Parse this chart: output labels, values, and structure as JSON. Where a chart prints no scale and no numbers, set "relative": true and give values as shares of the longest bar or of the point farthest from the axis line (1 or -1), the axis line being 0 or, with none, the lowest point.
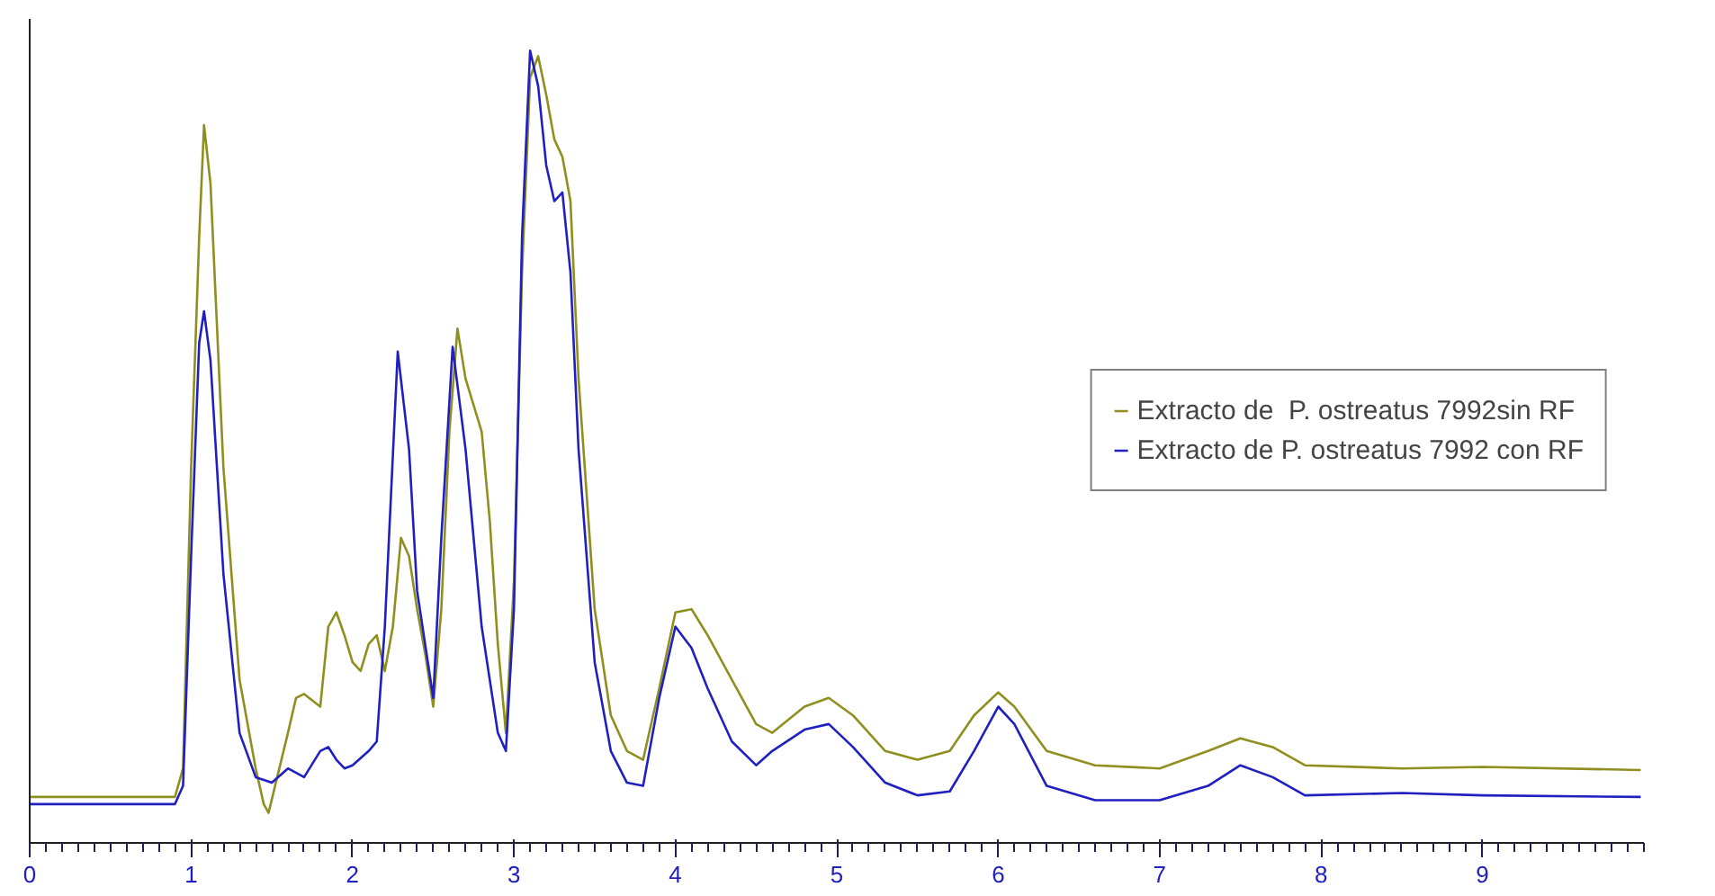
{
  "chart_data": {
    "type": "line",
    "relative": true,
    "xlim": [
      0,
      10
    ],
    "xticks": [
      0,
      1,
      2,
      3,
      4,
      5,
      6,
      7,
      8,
      9
    ],
    "grid": false,
    "legend": "right",
    "marker": "none",
    "line_style": "solid",
    "series": [
      {
        "name": "Extracto de  P. ostreatus 7992sin RF",
        "color": "#8f8f1f",
        "x": [
          0,
          0.9,
          0.95,
          1.0,
          1.05,
          1.08,
          1.12,
          1.2,
          1.3,
          1.4,
          1.45,
          1.48,
          1.52,
          1.6,
          1.65,
          1.7,
          1.8,
          1.85,
          1.9,
          1.95,
          2.0,
          2.05,
          2.1,
          2.15,
          2.2,
          2.25,
          2.3,
          2.35,
          2.4,
          2.45,
          2.5,
          2.55,
          2.6,
          2.65,
          2.7,
          2.8,
          2.85,
          2.9,
          2.95,
          3.0,
          3.05,
          3.1,
          3.15,
          3.2,
          3.25,
          3.3,
          3.35,
          3.4,
          3.5,
          3.6,
          3.7,
          3.8,
          3.9,
          4.0,
          4.1,
          4.2,
          4.35,
          4.5,
          4.6,
          4.8,
          4.95,
          5.1,
          5.3,
          5.5,
          5.7,
          5.85,
          6.0,
          6.1,
          6.3,
          6.6,
          7.0,
          7.3,
          7.5,
          7.7,
          7.9,
          8.5,
          9.0,
          9.98
        ],
        "values": [
          0.058,
          0.058,
          0.094,
          0.474,
          0.765,
          0.906,
          0.832,
          0.474,
          0.206,
          0.094,
          0.049,
          0.038,
          0.072,
          0.139,
          0.183,
          0.188,
          0.172,
          0.273,
          0.291,
          0.262,
          0.228,
          0.217,
          0.251,
          0.262,
          0.217,
          0.273,
          0.385,
          0.362,
          0.295,
          0.239,
          0.172,
          0.295,
          0.519,
          0.649,
          0.586,
          0.519,
          0.407,
          0.251,
          0.139,
          0.33,
          0.72,
          0.966,
          0.993,
          0.944,
          0.888,
          0.866,
          0.81,
          0.586,
          0.295,
          0.161,
          0.116,
          0.105,
          0.195,
          0.291,
          0.295,
          0.262,
          0.206,
          0.15,
          0.139,
          0.172,
          0.183,
          0.161,
          0.116,
          0.105,
          0.116,
          0.161,
          0.19,
          0.172,
          0.116,
          0.098,
          0.094,
          0.116,
          0.132,
          0.121,
          0.098,
          0.094,
          0.096,
          0.092
        ]
      },
      {
        "name": "Extracto de P. ostreatus 7992 con RF",
        "color": "#2020c0",
        "x": [
          0,
          0.9,
          0.95,
          1.0,
          1.05,
          1.08,
          1.12,
          1.2,
          1.3,
          1.4,
          1.5,
          1.6,
          1.7,
          1.8,
          1.85,
          1.9,
          1.95,
          2.0,
          2.1,
          2.15,
          2.2,
          2.28,
          2.35,
          2.4,
          2.5,
          2.55,
          2.62,
          2.7,
          2.8,
          2.9,
          2.95,
          3.0,
          3.05,
          3.1,
          3.15,
          3.2,
          3.25,
          3.3,
          3.35,
          3.4,
          3.5,
          3.6,
          3.7,
          3.8,
          3.9,
          4.0,
          4.1,
          4.2,
          4.35,
          4.5,
          4.6,
          4.8,
          4.95,
          5.1,
          5.3,
          5.5,
          5.7,
          5.85,
          6.0,
          6.1,
          6.3,
          6.6,
          7.0,
          7.3,
          7.5,
          7.7,
          7.9,
          8.5,
          9.0,
          9.98
        ],
        "values": [
          0.049,
          0.049,
          0.072,
          0.362,
          0.631,
          0.671,
          0.609,
          0.34,
          0.139,
          0.083,
          0.076,
          0.094,
          0.083,
          0.116,
          0.121,
          0.105,
          0.094,
          0.098,
          0.116,
          0.128,
          0.273,
          0.62,
          0.497,
          0.318,
          0.183,
          0.385,
          0.626,
          0.497,
          0.273,
          0.139,
          0.116,
          0.295,
          0.765,
          1,
          0.955,
          0.855,
          0.81,
          0.821,
          0.72,
          0.497,
          0.228,
          0.116,
          0.076,
          0.072,
          0.183,
          0.273,
          0.246,
          0.195,
          0.128,
          0.098,
          0.116,
          0.143,
          0.15,
          0.121,
          0.076,
          0.06,
          0.065,
          0.116,
          0.172,
          0.15,
          0.072,
          0.054,
          0.054,
          0.072,
          0.098,
          0.083,
          0.06,
          0.063,
          0.06,
          0.058
        ]
      }
    ]
  }
}
